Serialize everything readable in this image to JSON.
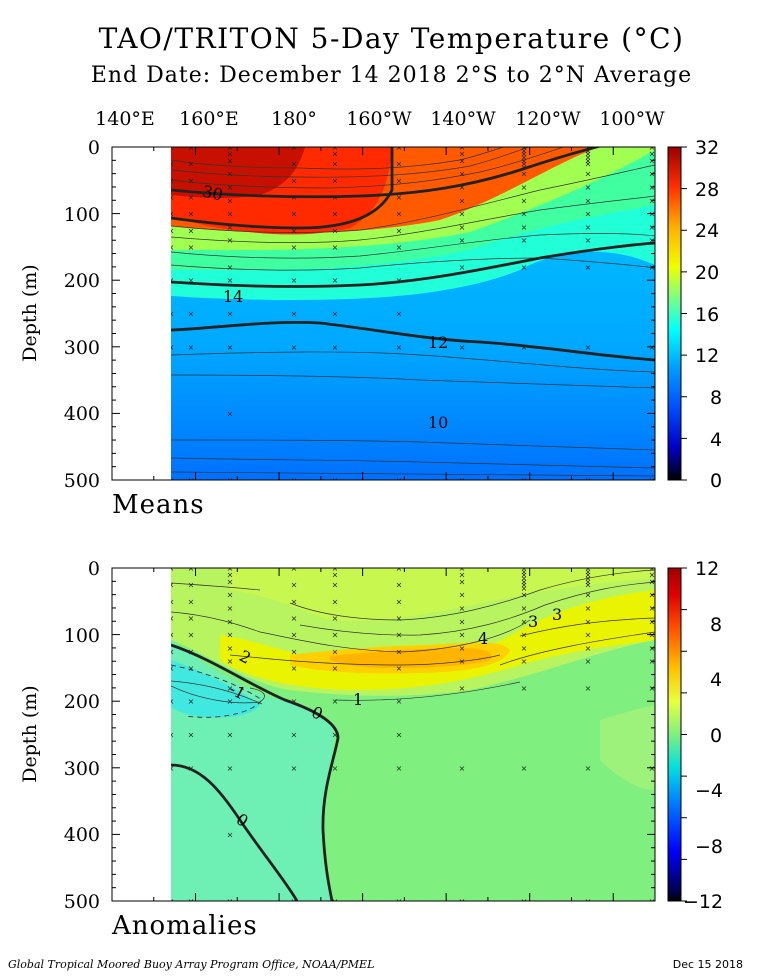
{
  "title": "TAO/TRITON 5-Day Temperature (°C)",
  "subtitle": "End Date: December 14 2018   2°S to 2°N Average",
  "footer_left": "Global Tropical Moored Buoy Array Program Office, NOAA/PMEL",
  "footer_right": "Dec 15 2018",
  "chart_data": [
    {
      "type": "heatmap",
      "panel_label": "Means",
      "ylabel": "Depth (m)",
      "x_tick_labels": [
        "140°E",
        "160°E",
        "180°",
        "160°W",
        "140°W",
        "120°W",
        "100°W"
      ],
      "y_tick_labels": [
        "0",
        "100",
        "200",
        "300",
        "400",
        "500"
      ],
      "ylim": [
        500,
        0
      ],
      "colorbar": {
        "min": 0,
        "max": 32,
        "tick_labels": [
          "32",
          "28",
          "24",
          "20",
          "16",
          "12",
          "8",
          "4",
          "0"
        ]
      },
      "contour_labels": [
        "30",
        "14",
        "12",
        "10"
      ],
      "isotherm_depths_m": {
        "longitudes": [
          "160°E",
          "170°E",
          "180°",
          "170°W",
          "160°W",
          "150°W",
          "140°W",
          "130°W",
          "120°W",
          "110°W",
          "100°W",
          "95°W"
        ],
        "t28": [
          108,
          108,
          115,
          122,
          122,
          112,
          100,
          82,
          65,
          50,
          35,
          28
        ],
        "t20": [
          165,
          170,
          175,
          176,
          172,
          160,
          145,
          128,
          112,
          98,
          85,
          80
        ],
        "t14": [
          205,
          205,
          206,
          205,
          200,
          190,
          180,
          168,
          155,
          145,
          140,
          137
        ],
        "t12": [
          282,
          280,
          275,
          270,
          278,
          290,
          298,
          302,
          305,
          312,
          320,
          322
        ],
        "t10": [
          388,
          395,
          400,
          410,
          420,
          422,
          420,
          420,
          420,
          422,
          425,
          425
        ]
      },
      "warm_pool_30C_longitudes": [
        "160°E",
        "165°E",
        "170°E",
        "175°E"
      ]
    },
    {
      "type": "heatmap",
      "panel_label": "Anomalies",
      "ylabel": "Depth (m)",
      "y_tick_labels": [
        "0",
        "100",
        "200",
        "300",
        "400",
        "500"
      ],
      "ylim": [
        500,
        0
      ],
      "colorbar": {
        "min": -12,
        "max": 12,
        "tick_labels": [
          "12",
          "8",
          "4",
          "0",
          "−4",
          "−8",
          "−12"
        ]
      },
      "contour_labels": [
        "2",
        "-1",
        "0",
        "1",
        "4",
        "3",
        "3",
        "0"
      ],
      "features": [
        {
          "value": 4,
          "center_longitude": "145°W",
          "center_depth_m": 130
        },
        {
          "value": -1,
          "center_longitude": "160°E",
          "center_depth_m": 205
        }
      ]
    }
  ]
}
